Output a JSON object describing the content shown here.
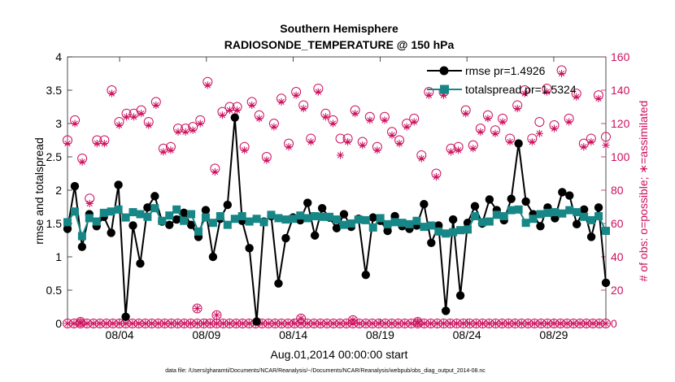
{
  "chart_data": {
    "type": "line",
    "title_line1": "Southern Hemisphere",
    "title_line2": "RADIOSONDE_TEMPERATURE @ 150 hPa",
    "xlabel": "Aug.01,2014 00:00:00 start",
    "ylabel_left": "rmse and totalspread",
    "ylabel_right": "# of obs: o=possible; ∗=assimilated",
    "footer": "data file: /Users/gharamti/Documents/NCAR/Reanalysis/~/Documents/NCAR/Reanalysis/webpub/obs_diag_output_2014-08.nc",
    "x_range": [
      0,
      124
    ],
    "ylim_left": [
      0,
      4
    ],
    "ylim_right": [
      0,
      160
    ],
    "xticks": [
      {
        "x": 12,
        "label": "08/04"
      },
      {
        "x": 32,
        "label": "08/09"
      },
      {
        "x": 52,
        "label": "08/14"
      },
      {
        "x": 72,
        "label": "08/19"
      },
      {
        "x": 92,
        "label": "08/24"
      },
      {
        "x": 112,
        "label": "08/29"
      }
    ],
    "yticks_left": [
      "0",
      "0.5",
      "1",
      "1.5",
      "2",
      "2.5",
      "3",
      "3.5",
      "4"
    ],
    "yticks_right": [
      "0",
      "20",
      "40",
      "60",
      "80",
      "100",
      "120",
      "140",
      "160"
    ],
    "colors": {
      "rmse": "#000000",
      "totalspread": "#178686",
      "obs": "#cc0f5e",
      "axis": "#222222"
    },
    "legend": [
      {
        "key": "rmse",
        "label": "rmse pr=1.4926"
      },
      {
        "key": "totalspread",
        "label": "totalspread pr=1.5324"
      }
    ],
    "rmse": [
      1.42,
      2.06,
      1.15,
      1.64,
      1.46,
      1.6,
      1.36,
      2.08,
      0.1,
      1.47,
      0.9,
      1.74,
      1.91,
      1.53,
      1.48,
      1.56,
      1.66,
      1.48,
      1.3,
      1.7,
      1.0,
      1.57,
      1.78,
      3.09,
      1.54,
      1.13,
      0.03,
      1.53,
      1.61,
      0.6,
      1.28,
      1.59,
      1.55,
      1.81,
      1.32,
      1.73,
      1.59,
      1.43,
      1.64,
      1.45,
      1.57,
      0.73,
      1.59,
      1.54,
      1.39,
      1.61,
      1.46,
      1.42,
      1.47,
      1.79,
      1.21,
      1.47,
      0.19,
      1.56,
      0.42,
      1.51,
      1.76,
      1.5,
      1.86,
      1.7,
      1.55,
      1.87,
      2.7,
      1.83,
      1.64,
      1.46,
      1.74,
      1.58,
      1.97,
      1.92,
      1.49,
      1.71,
      1.3,
      1.74,
      0.61
    ],
    "totalspread": [
      1.52,
      1.68,
      1.31,
      1.58,
      1.53,
      1.66,
      1.68,
      1.71,
      1.59,
      1.67,
      1.64,
      1.6,
      1.73,
      1.54,
      1.62,
      1.71,
      1.54,
      1.64,
      1.38,
      1.59,
      1.51,
      1.61,
      1.48,
      1.57,
      1.61,
      1.53,
      1.57,
      1.52,
      1.63,
      1.58,
      1.56,
      1.57,
      1.62,
      1.58,
      1.61,
      1.6,
      1.6,
      1.56,
      1.48,
      1.5,
      1.56,
      1.55,
      1.44,
      1.58,
      1.49,
      1.52,
      1.51,
      1.49,
      1.54,
      1.45,
      1.47,
      1.38,
      1.35,
      1.37,
      1.4,
      1.41,
      1.61,
      1.52,
      1.53,
      1.63,
      1.61,
      1.7,
      1.71,
      1.51,
      1.57,
      1.64,
      1.66,
      1.67,
      1.65,
      1.7,
      1.67,
      1.6,
      1.55,
      1.61,
      1.39
    ],
    "obs_possible_high": [
      110,
      122,
      99,
      75,
      110,
      110,
      140,
      121,
      126,
      126,
      128,
      121,
      133,
      105,
      106,
      117,
      117,
      118,
      122,
      145,
      93,
      127,
      130,
      130,
      106,
      133,
      125,
      100,
      120,
      135,
      108,
      139,
      131,
      111,
      141,
      126,
      122,
      111,
      111,
      128,
      109,
      124,
      106,
      124,
      115,
      110,
      120,
      123,
      101,
      139,
      90,
      139,
      105,
      106,
      128,
      107,
      117,
      125,
      116,
      123,
      111,
      131,
      140,
      111,
      121,
      141,
      119,
      152,
      123,
      138,
      108,
      111,
      137,
      112
    ],
    "obs_assim_high": [
      108,
      120,
      97,
      72,
      108,
      108,
      138,
      119,
      124,
      124,
      126,
      119,
      131,
      103,
      104,
      115,
      115,
      116,
      120,
      143,
      91,
      125,
      128,
      128,
      104,
      131,
      123,
      98,
      118,
      133,
      106,
      137,
      129,
      109,
      139,
      124,
      120,
      101,
      109,
      126,
      107,
      122,
      104,
      122,
      113,
      108,
      118,
      121,
      99,
      137,
      88,
      137,
      103,
      104,
      126,
      105,
      115,
      123,
      114,
      121,
      109,
      129,
      138,
      109,
      114,
      139,
      117,
      150,
      121,
      136,
      106,
      109,
      135,
      107
    ],
    "obs_possible_low": [
      0,
      0,
      0,
      0,
      0,
      0,
      0,
      0,
      0,
      0,
      0,
      0,
      0,
      0,
      0,
      0,
      0,
      0,
      0,
      0,
      0,
      0,
      0,
      0,
      0,
      0,
      0,
      0,
      0,
      0,
      0,
      0,
      0,
      0,
      0,
      0,
      0,
      0,
      0,
      0,
      0,
      0,
      0,
      0,
      0,
      0,
      0,
      0,
      0,
      0,
      0,
      0,
      0,
      0,
      0,
      0,
      0,
      0,
      0,
      0,
      0,
      0,
      0,
      0,
      0,
      0,
      0,
      0,
      0,
      0,
      0,
      0,
      0,
      0,
      0,
      0,
      0,
      0,
      0,
      0,
      0,
      0,
      0,
      0
    ],
    "obs_low_spikes": [
      {
        "idx": 2,
        "v": 1
      },
      {
        "idx": 20,
        "v": 9
      },
      {
        "idx": 23,
        "v": 5
      },
      {
        "idx": 36,
        "v": 3
      },
      {
        "idx": 44,
        "v": 2
      },
      {
        "idx": 54,
        "v": 1
      },
      {
        "idx": 106,
        "v": 3
      }
    ]
  }
}
